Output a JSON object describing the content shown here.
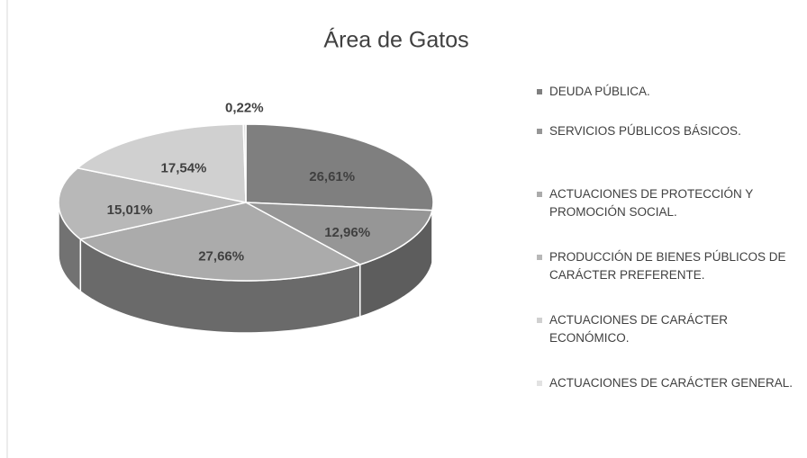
{
  "chart_data": {
    "type": "pie",
    "title": "Área de Gatos",
    "categories": [
      "DEUDA PÚBLICA.",
      "SERVICIOS PÚBLICOS BÁSICOS.",
      "ACTUACIONES DE PROTECCIÓN Y PROMOCIÓN SOCIAL.",
      "PRODUCCIÓN DE BIENES PÚBLICOS DE CARÁCTER PREFERENTE.",
      "ACTUACIONES DE CARÁCTER ECONÓMICO.",
      "ACTUACIONES DE CARÁCTER GENERAL."
    ],
    "values": [
      26.61,
      12.96,
      27.66,
      15.01,
      17.54,
      0.22
    ],
    "value_labels": [
      "26,61%",
      "12,96%",
      "27,66%",
      "15,01%",
      "17,54%",
      "0,22%"
    ],
    "colors": [
      "#7f7f7f",
      "#969696",
      "#ababab",
      "#b8b8b8",
      "#d0d0d0",
      "#e2e2e2"
    ],
    "legend": "right"
  }
}
